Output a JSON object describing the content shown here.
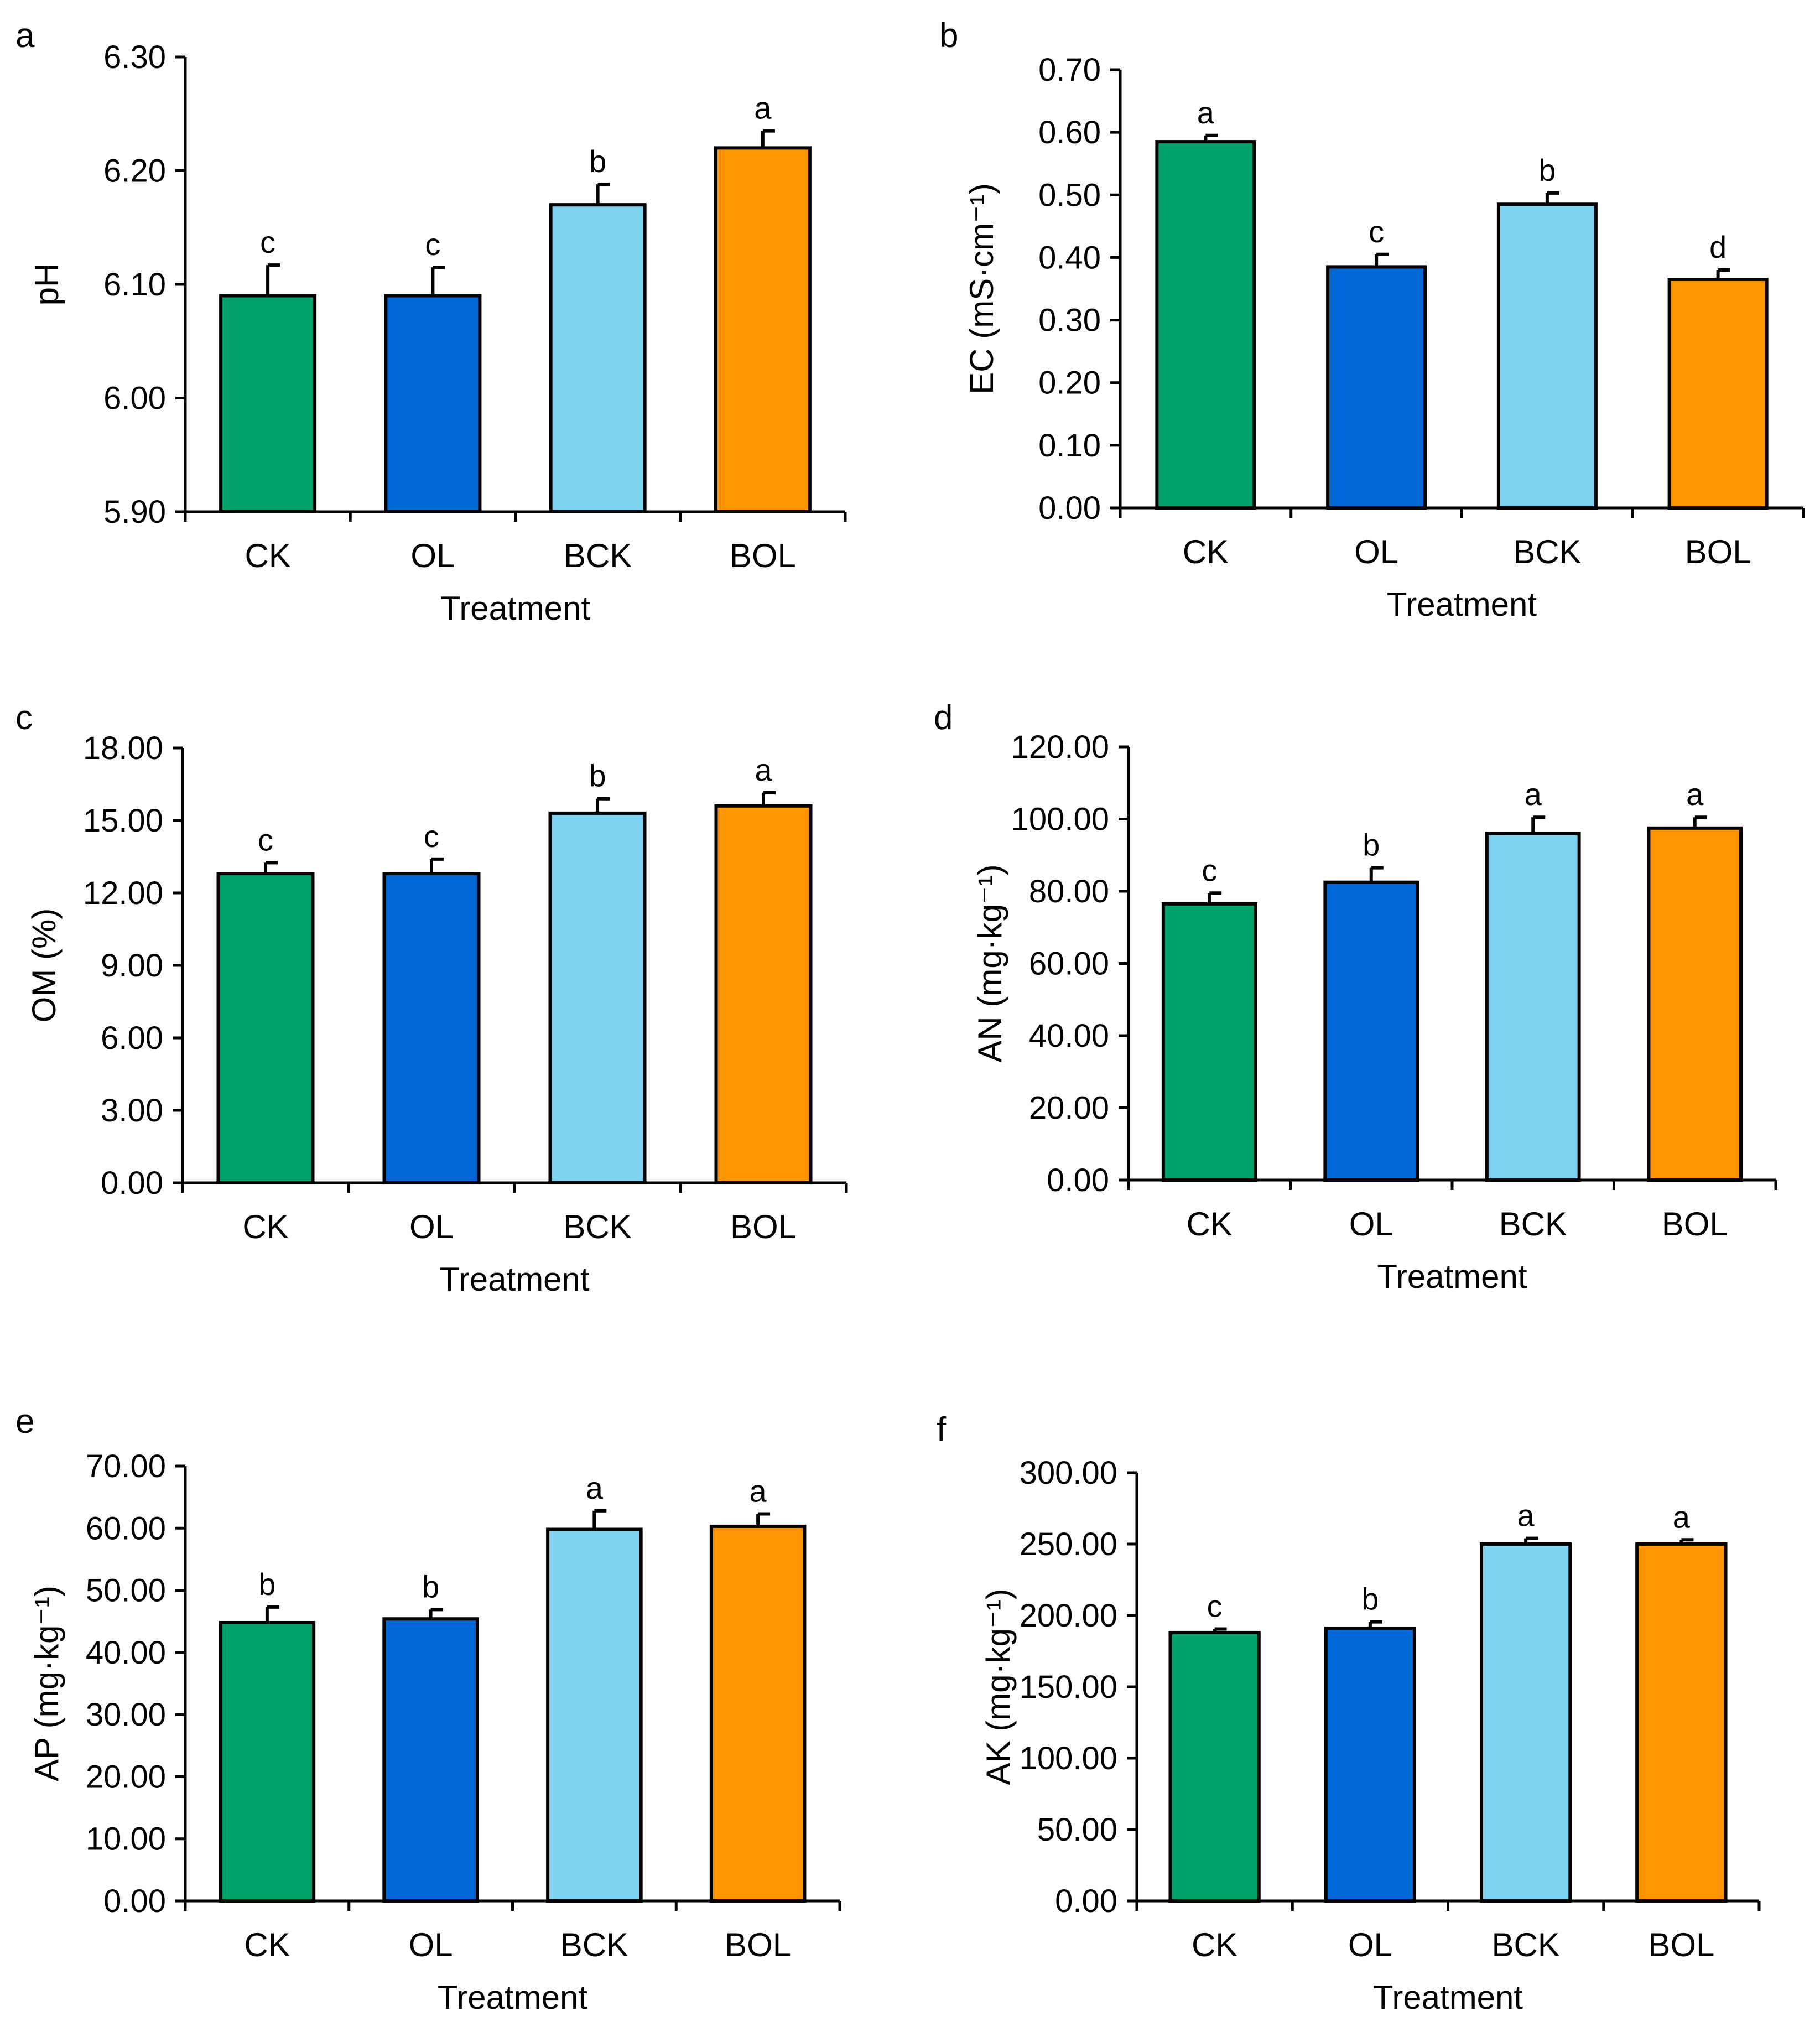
{
  "chart_data": [
    {
      "panel": "a",
      "type": "bar",
      "title": "",
      "xlabel": "Treatment",
      "ylabel": "pH",
      "categories": [
        "CK",
        "OL",
        "BCK",
        "BOL"
      ],
      "values": [
        6.09,
        6.09,
        6.17,
        6.22
      ],
      "errors": [
        0.027,
        0.025,
        0.018,
        0.015
      ],
      "significance": [
        "c",
        "c",
        "b",
        "a"
      ],
      "colors": [
        "#00A26A",
        "#0067D6",
        "#7FD3F0",
        "#FF9500"
      ],
      "ylim": [
        5.9,
        6.3
      ],
      "yticks": [
        "5.90",
        "6.00",
        "6.10",
        "6.20",
        "6.30"
      ],
      "grid": false
    },
    {
      "panel": "b",
      "type": "bar",
      "title": "",
      "xlabel": "Treatment",
      "ylabel": "EC (mS·cm⁻¹)",
      "categories": [
        "CK",
        "OL",
        "BCK",
        "BOL"
      ],
      "values": [
        0.585,
        0.385,
        0.485,
        0.365
      ],
      "errors": [
        0.01,
        0.02,
        0.018,
        0.015
      ],
      "significance": [
        "a",
        "c",
        "b",
        "d"
      ],
      "colors": [
        "#00A26A",
        "#0067D6",
        "#7FD3F0",
        "#FF9500"
      ],
      "ylim": [
        0,
        0.7
      ],
      "yticks": [
        "0.00",
        "0.10",
        "0.20",
        "0.30",
        "0.40",
        "0.50",
        "0.60",
        "0.70"
      ],
      "grid": false
    },
    {
      "panel": "c",
      "type": "bar",
      "title": "",
      "xlabel": "Treatment",
      "ylabel": "OM (%)",
      "categories": [
        "CK",
        "OL",
        "BCK",
        "BOL"
      ],
      "values": [
        12.8,
        12.8,
        15.3,
        15.6
      ],
      "errors": [
        0.45,
        0.6,
        0.6,
        0.55
      ],
      "significance": [
        "c",
        "c",
        "b",
        "a"
      ],
      "colors": [
        "#00A26A",
        "#0067D6",
        "#7FD3F0",
        "#FF9500"
      ],
      "ylim": [
        0,
        18
      ],
      "yticks": [
        "0.00",
        "3.00",
        "6.00",
        "9.00",
        "12.00",
        "15.00",
        "18.00"
      ],
      "grid": false
    },
    {
      "panel": "d",
      "type": "bar",
      "title": "",
      "xlabel": "Treatment",
      "ylabel": "AN (mg·kg⁻¹)",
      "categories": [
        "CK",
        "OL",
        "BCK",
        "BOL"
      ],
      "values": [
        76.5,
        82.5,
        96.0,
        97.5
      ],
      "errors": [
        3.0,
        4.0,
        4.5,
        3.0
      ],
      "significance": [
        "c",
        "b",
        "a",
        "a"
      ],
      "colors": [
        "#00A26A",
        "#0067D6",
        "#7FD3F0",
        "#FF9500"
      ],
      "ylim": [
        0,
        120
      ],
      "yticks": [
        "0.00",
        "20.00",
        "40.00",
        "60.00",
        "80.00",
        "100.00",
        "120.00"
      ],
      "grid": false
    },
    {
      "panel": "e",
      "type": "bar",
      "title": "",
      "xlabel": "Treatment",
      "ylabel": "AP (mg·kg⁻¹)",
      "categories": [
        "CK",
        "OL",
        "BCK",
        "BOL"
      ],
      "values": [
        44.8,
        45.4,
        59.8,
        60.3
      ],
      "errors": [
        2.5,
        1.5,
        3.0,
        2.0
      ],
      "significance": [
        "b",
        "b",
        "a",
        "a"
      ],
      "colors": [
        "#00A26A",
        "#0067D6",
        "#7FD3F0",
        "#FF9500"
      ],
      "ylim": [
        0,
        70
      ],
      "yticks": [
        "0.00",
        "10.00",
        "20.00",
        "30.00",
        "40.00",
        "50.00",
        "60.00",
        "70.00"
      ],
      "grid": false
    },
    {
      "panel": "f",
      "type": "bar",
      "title": "",
      "xlabel": "Treatment",
      "ylabel": "AK (mg·kg⁻¹)",
      "categories": [
        "CK",
        "OL",
        "BCK",
        "BOL"
      ],
      "values": [
        188,
        191,
        250,
        250
      ],
      "errors": [
        2.5,
        4.5,
        4.0,
        3.0
      ],
      "significance": [
        "c",
        "b",
        "a",
        "a"
      ],
      "colors": [
        "#00A26A",
        "#0067D6",
        "#7FD3F0",
        "#FF9500"
      ],
      "ylim": [
        0,
        300
      ],
      "yticks": [
        "0.00",
        "50.00",
        "100.00",
        "150.00",
        "200.00",
        "250.00",
        "300.00"
      ],
      "grid": false
    }
  ]
}
